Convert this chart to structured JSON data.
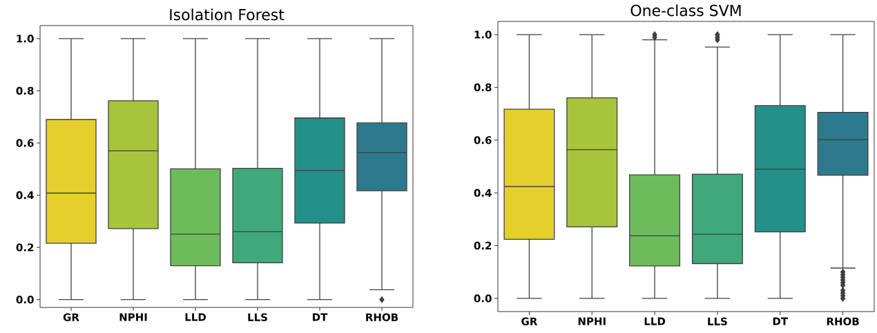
{
  "chart_data": [
    {
      "type": "box",
      "title": "Isolation Forest",
      "categories": [
        "GR",
        "NPHI",
        "LLD",
        "LLS",
        "DT",
        "RHOB"
      ],
      "colors": [
        "#e5cf2c",
        "#a8c43c",
        "#6cbc5c",
        "#40a87a",
        "#23908a",
        "#2d7a8c"
      ],
      "boxes": [
        {
          "low": 0.0,
          "q1": 0.216,
          "median": 0.408,
          "q3": 0.69,
          "high": 1.0
        },
        {
          "low": 0.0,
          "q1": 0.272,
          "median": 0.57,
          "q3": 0.762,
          "high": 1.0
        },
        {
          "low": 0.0,
          "q1": 0.13,
          "median": 0.251,
          "q3": 0.501,
          "high": 1.0
        },
        {
          "low": 0.0,
          "q1": 0.141,
          "median": 0.26,
          "q3": 0.503,
          "high": 1.0
        },
        {
          "low": 0.0,
          "q1": 0.293,
          "median": 0.495,
          "q3": 0.696,
          "high": 1.0
        },
        {
          "low": 0.038,
          "q1": 0.417,
          "median": 0.563,
          "q3": 0.677,
          "high": 1.0,
          "outliers": [
            0.0
          ]
        }
      ],
      "marker": "diamond",
      "ylim": [
        -0.03,
        1.05
      ],
      "yticks": [
        {
          "value": 0,
          "label": "0.0"
        },
        {
          "value": 0.2,
          "label": "0.2"
        },
        {
          "value": 0.4,
          "label": "0.4"
        },
        {
          "value": 0.6,
          "label": "0.6"
        },
        {
          "value": 0.8,
          "label": "0.8"
        },
        {
          "value": 1,
          "label": "1.0"
        }
      ]
    },
    {
      "type": "box",
      "title": "One-class SVM",
      "categories": [
        "GR",
        "NPHI",
        "LLD",
        "LLS",
        "DT",
        "RHOB"
      ],
      "colors": [
        "#e5cf2c",
        "#a8c43c",
        "#6cbc5c",
        "#40a87a",
        "#23908a",
        "#2d7a8c"
      ],
      "boxes": [
        {
          "low": 0.0,
          "q1": 0.224,
          "median": 0.424,
          "q3": 0.717,
          "high": 1.0
        },
        {
          "low": 0.0,
          "q1": 0.271,
          "median": 0.564,
          "q3": 0.76,
          "high": 1.0
        },
        {
          "low": 0.0,
          "q1": 0.123,
          "median": 0.237,
          "q3": 0.468,
          "high": 0.98,
          "outliers": [
            0.99,
            1.0
          ]
        },
        {
          "low": 0.0,
          "q1": 0.132,
          "median": 0.243,
          "q3": 0.471,
          "high": 0.953,
          "outliers": [
            0.98,
            0.99,
            1.0
          ]
        },
        {
          "low": 0.0,
          "q1": 0.252,
          "median": 0.49,
          "q3": 0.731,
          "high": 1.0
        },
        {
          "low": 0.115,
          "q1": 0.467,
          "median": 0.602,
          "q3": 0.705,
          "high": 1.0,
          "outliers": [
            0.1,
            0.09,
            0.08,
            0.07,
            0.06,
            0.05,
            0.03,
            0.02,
            0.01,
            0.0
          ]
        }
      ],
      "marker": "diamond",
      "ylim": [
        -0.05,
        1.05
      ],
      "yticks": [
        {
          "value": 0,
          "label": "0.0"
        },
        {
          "value": 0.2,
          "label": "0.2"
        },
        {
          "value": 0.4,
          "label": "0.4"
        },
        {
          "value": 0.6,
          "label": "0.6"
        },
        {
          "value": 0.8,
          "label": "0.8"
        },
        {
          "value": 1,
          "label": "1.0"
        }
      ]
    }
  ]
}
